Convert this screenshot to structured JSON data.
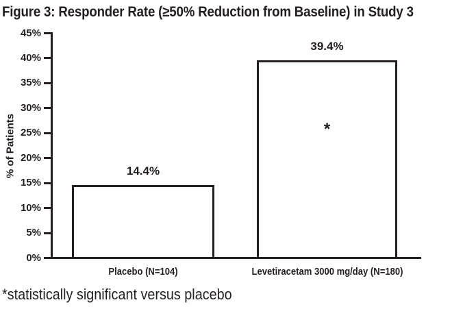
{
  "figure": {
    "title": "Figure 3: Responder Rate (≥50% Reduction from Baseline) in Study 3",
    "footnote": "*statistically significant versus placebo"
  },
  "chart_data": {
    "type": "bar",
    "title": "Figure 3: Responder Rate (≥50% Reduction from Baseline) in Study 3",
    "categories": [
      "Placebo (N=104)",
      "Levetiracetam 3000 mg/day (N=180)"
    ],
    "values": [
      14.4,
      39.4
    ],
    "value_labels": [
      "14.4%",
      "39.4%"
    ],
    "bar_annotations": [
      "",
      "*"
    ],
    "annotation_note": "*statistically significant versus placebo",
    "xlabel": "",
    "ylabel": "% of Patients",
    "ylim": [
      0,
      45
    ],
    "ytick_values": [
      0,
      5,
      10,
      15,
      20,
      25,
      30,
      35,
      40,
      45
    ],
    "ytick_labels": [
      "0%",
      "5%",
      "10%",
      "15%",
      "20%",
      "25%",
      "30%",
      "35%",
      "40%",
      "45%"
    ],
    "grid": false,
    "legend": false,
    "bar_fill": "#ffffff",
    "bar_border": "#231f20"
  },
  "colors": {
    "ink": "#231f20",
    "background": "#ffffff"
  }
}
